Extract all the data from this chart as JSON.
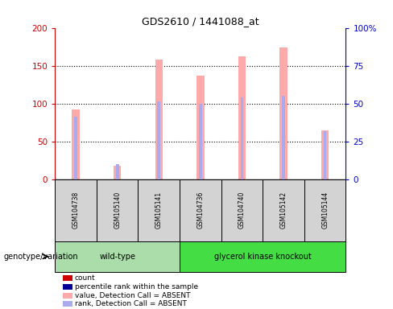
{
  "title": "GDS2610 / 1441088_at",
  "samples": [
    "GSM104738",
    "GSM105140",
    "GSM105141",
    "GSM104736",
    "GSM104740",
    "GSM105142",
    "GSM105144"
  ],
  "pink_values": [
    92,
    18,
    158,
    137,
    162,
    174,
    65
  ],
  "blue_values": [
    83,
    20,
    103,
    100,
    108,
    110,
    63
  ],
  "ylim_left": [
    0,
    200
  ],
  "ylim_right": [
    0,
    100
  ],
  "yticks_left": [
    0,
    50,
    100,
    150,
    200
  ],
  "ytick_labels_right": [
    "0",
    "25",
    "50",
    "75",
    "100%"
  ],
  "yticks_right": [
    0,
    25,
    50,
    75,
    100
  ],
  "bg_color": "#ffffff",
  "left_axis_color": "#cc0000",
  "right_axis_color": "#0000cc",
  "pink_color": "#ffaaaa",
  "blue_bar_color": "#aaaaee",
  "sample_box_color": "#d3d3d3",
  "wt_color": "#aaddaa",
  "gk_color": "#44dd44",
  "genotype_label": "genotype/variation",
  "wt_label": "wild-type",
  "gk_label": "glycerol kinase knockout",
  "legend_items": [
    {
      "label": "count",
      "color": "#cc0000"
    },
    {
      "label": "percentile rank within the sample",
      "color": "#000099"
    },
    {
      "label": "value, Detection Call = ABSENT",
      "color": "#ffaaaa"
    },
    {
      "label": "rank, Detection Call = ABSENT",
      "color": "#aaaaee"
    }
  ]
}
